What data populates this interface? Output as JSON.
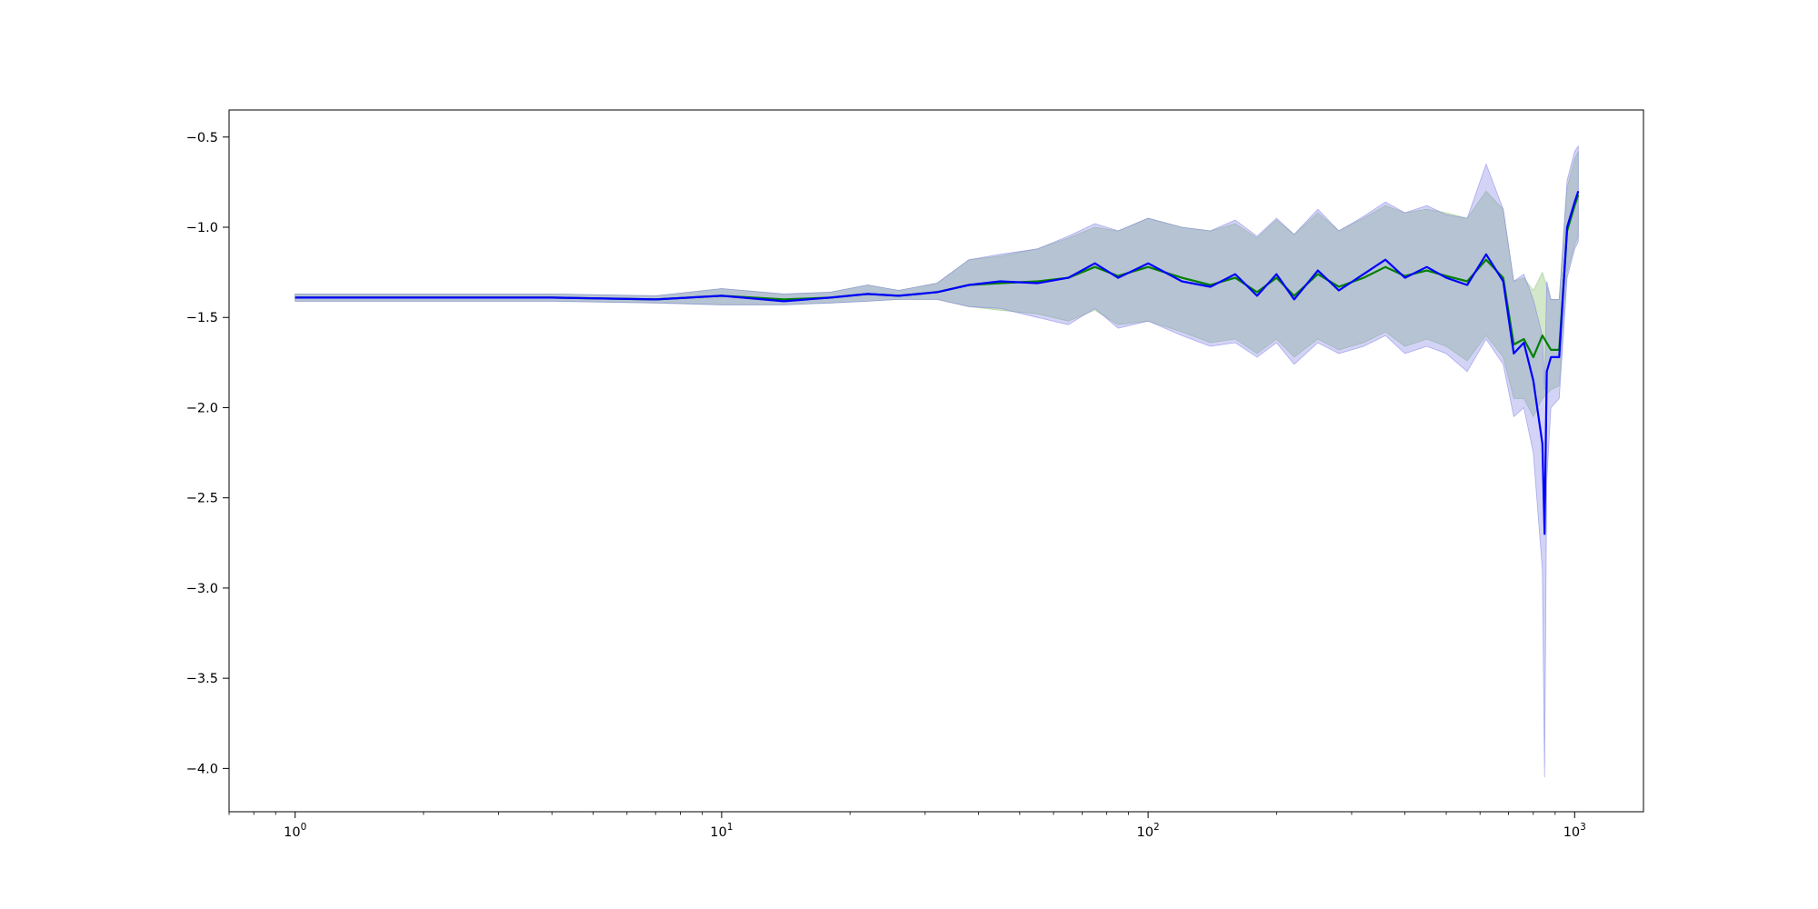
{
  "chart_data": {
    "type": "line",
    "title": "",
    "xlabel": "",
    "ylabel": "",
    "xscale": "log",
    "xlim": [
      0.7,
      1450
    ],
    "ylim": [
      -4.24,
      -0.35
    ],
    "grid": false,
    "legend": "none",
    "x_ticks": [
      {
        "value": 1,
        "base": "10",
        "exp": "0"
      },
      {
        "value": 10,
        "base": "10",
        "exp": "1"
      },
      {
        "value": 100,
        "base": "10",
        "exp": "2"
      },
      {
        "value": 1000,
        "base": "10",
        "exp": "3"
      }
    ],
    "y_ticks": [
      {
        "value": -0.5,
        "label": "−0.5"
      },
      {
        "value": -1.0,
        "label": "−1.0"
      },
      {
        "value": -1.5,
        "label": "−1.5"
      },
      {
        "value": -2.0,
        "label": "−2.0"
      },
      {
        "value": -2.5,
        "label": "−2.5"
      },
      {
        "value": -3.0,
        "label": "−3.0"
      },
      {
        "value": -3.5,
        "label": "−3.5"
      },
      {
        "value": -4.0,
        "label": "−4.0"
      }
    ],
    "series": [
      {
        "color": "#008000",
        "band_color": "#90c47a",
        "x": [
          1,
          2,
          4,
          7,
          10,
          14,
          18,
          22,
          26,
          32,
          38,
          45,
          55,
          65,
          75,
          85,
          100,
          120,
          140,
          160,
          180,
          200,
          220,
          250,
          280,
          320,
          360,
          400,
          450,
          500,
          560,
          620,
          680,
          720,
          760,
          800,
          840,
          880,
          920,
          960,
          1000,
          1020
        ],
        "values": [
          -1.39,
          -1.39,
          -1.39,
          -1.4,
          -1.38,
          -1.4,
          -1.39,
          -1.37,
          -1.38,
          -1.36,
          -1.32,
          -1.31,
          -1.3,
          -1.28,
          -1.22,
          -1.27,
          -1.22,
          -1.28,
          -1.32,
          -1.28,
          -1.36,
          -1.28,
          -1.38,
          -1.26,
          -1.33,
          -1.28,
          -1.22,
          -1.27,
          -1.24,
          -1.27,
          -1.3,
          -1.18,
          -1.28,
          -1.65,
          -1.62,
          -1.72,
          -1.6,
          -1.68,
          -1.68,
          -1.02,
          -0.88,
          -0.82
        ],
        "lower": [
          -1.41,
          -1.41,
          -1.41,
          -1.42,
          -1.43,
          -1.43,
          -1.42,
          -1.41,
          -1.4,
          -1.4,
          -1.44,
          -1.46,
          -1.48,
          -1.52,
          -1.46,
          -1.54,
          -1.52,
          -1.58,
          -1.64,
          -1.62,
          -1.7,
          -1.62,
          -1.72,
          -1.62,
          -1.68,
          -1.64,
          -1.58,
          -1.66,
          -1.62,
          -1.66,
          -1.74,
          -1.6,
          -1.72,
          -1.95,
          -1.95,
          -2.05,
          -1.95,
          -1.9,
          -1.88,
          -1.25,
          -1.1,
          -1.05
        ],
        "upper": [
          -1.37,
          -1.37,
          -1.37,
          -1.38,
          -1.34,
          -1.37,
          -1.36,
          -1.32,
          -1.35,
          -1.31,
          -1.18,
          -1.16,
          -1.12,
          -1.06,
          -1.0,
          -1.02,
          -0.95,
          -1.0,
          -1.02,
          -0.98,
          -1.06,
          -0.96,
          -1.04,
          -0.92,
          -1.02,
          -0.95,
          -0.88,
          -0.92,
          -0.9,
          -0.92,
          -0.95,
          -0.8,
          -0.9,
          -1.3,
          -1.28,
          -1.35,
          -1.25,
          -1.4,
          -1.4,
          -0.78,
          -0.62,
          -0.58
        ]
      },
      {
        "color": "#0000ff",
        "band_color": "#8080e6",
        "x": [
          1,
          2,
          4,
          7,
          10,
          14,
          18,
          22,
          26,
          32,
          38,
          45,
          55,
          65,
          75,
          85,
          100,
          120,
          140,
          160,
          180,
          200,
          220,
          250,
          280,
          320,
          360,
          400,
          450,
          500,
          560,
          620,
          680,
          720,
          760,
          800,
          840,
          850,
          860,
          880,
          920,
          960,
          1000,
          1020
        ],
        "values": [
          -1.39,
          -1.39,
          -1.39,
          -1.4,
          -1.38,
          -1.41,
          -1.39,
          -1.37,
          -1.38,
          -1.36,
          -1.32,
          -1.3,
          -1.31,
          -1.28,
          -1.2,
          -1.28,
          -1.2,
          -1.3,
          -1.33,
          -1.26,
          -1.38,
          -1.26,
          -1.4,
          -1.24,
          -1.35,
          -1.26,
          -1.18,
          -1.28,
          -1.22,
          -1.28,
          -1.32,
          -1.15,
          -1.3,
          -1.7,
          -1.64,
          -1.85,
          -2.2,
          -2.7,
          -1.8,
          -1.72,
          -1.72,
          -1.0,
          -0.86,
          -0.8
        ],
        "lower": [
          -1.41,
          -1.41,
          -1.41,
          -1.42,
          -1.43,
          -1.43,
          -1.42,
          -1.41,
          -1.4,
          -1.4,
          -1.44,
          -1.45,
          -1.5,
          -1.54,
          -1.45,
          -1.56,
          -1.52,
          -1.6,
          -1.66,
          -1.64,
          -1.72,
          -1.64,
          -1.76,
          -1.64,
          -1.7,
          -1.66,
          -1.6,
          -1.7,
          -1.66,
          -1.7,
          -1.8,
          -1.62,
          -1.76,
          -2.05,
          -2.0,
          -2.25,
          -2.9,
          -4.05,
          -2.4,
          -2.0,
          -1.95,
          -1.28,
          -1.12,
          -1.08
        ],
        "upper": [
          -1.37,
          -1.37,
          -1.37,
          -1.38,
          -1.34,
          -1.37,
          -1.36,
          -1.32,
          -1.35,
          -1.31,
          -1.18,
          -1.15,
          -1.12,
          -1.05,
          -0.98,
          -1.02,
          -0.95,
          -1.0,
          -1.02,
          -0.96,
          -1.05,
          -0.95,
          -1.04,
          -0.9,
          -1.02,
          -0.94,
          -0.86,
          -0.92,
          -0.88,
          -0.93,
          -0.95,
          -0.65,
          -0.9,
          -1.3,
          -1.26,
          -1.4,
          -1.6,
          -1.9,
          -1.3,
          -1.4,
          -1.4,
          -0.74,
          -0.58,
          -0.55
        ]
      }
    ]
  }
}
